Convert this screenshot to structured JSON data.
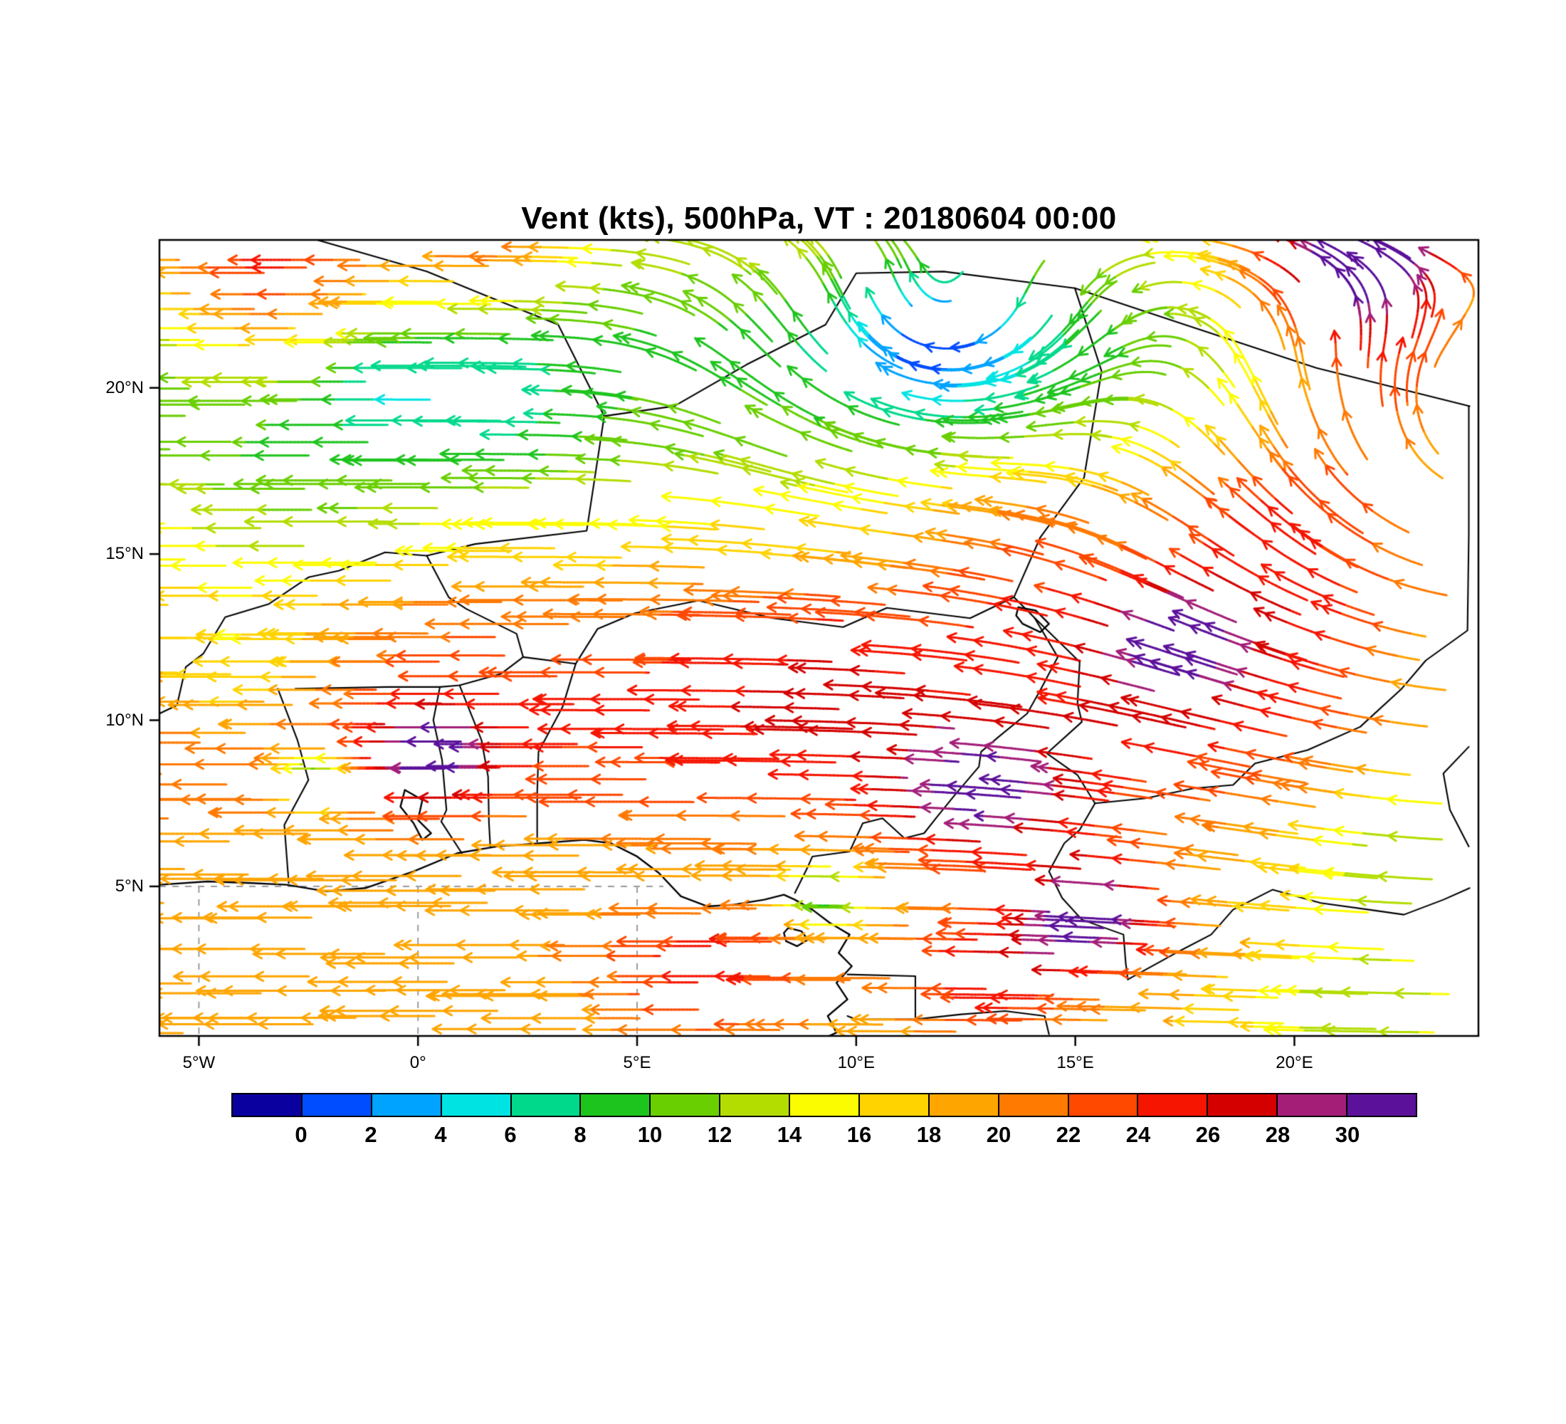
{
  "title": "Vent (kts), 500hPa, VT : 20180604  00:00",
  "chart_data": {
    "type": "vector_field_map",
    "variable": "Vent",
    "units": "kts",
    "pressure_level": "500hPa",
    "valid_time": "20180604 00:00",
    "title": "Vent (kts), 500hPa, VT : 20180604  00:00",
    "map_extent": {
      "lon_min": -5.9,
      "lon_max": 24.2,
      "lat_min": 0.5,
      "lat_max": 24.45
    },
    "x_ticks": [
      {
        "value": -5,
        "label": "5°W"
      },
      {
        "value": 0,
        "label": "0°"
      },
      {
        "value": 5,
        "label": "5°E"
      },
      {
        "value": 10,
        "label": "10°E"
      },
      {
        "value": 15,
        "label": "15°E"
      },
      {
        "value": 20,
        "label": "20°E"
      }
    ],
    "y_ticks": [
      {
        "value": 5,
        "label": "5°N"
      },
      {
        "value": 10,
        "label": "10°N"
      },
      {
        "value": 15,
        "label": "15°N"
      },
      {
        "value": 20,
        "label": "20°N"
      }
    ],
    "grid_lines": {
      "dashed_parallels": [
        5
      ],
      "dashed_meridians": [
        -5,
        0,
        5
      ]
    },
    "colorbar": {
      "tick_labels": [
        "0",
        "2",
        "4",
        "6",
        "8",
        "10",
        "12",
        "14",
        "16",
        "18",
        "20",
        "22",
        "24",
        "26",
        "28",
        "30"
      ],
      "colors": [
        "#0a00a0",
        "#004dff",
        "#00a3ff",
        "#00e3e3",
        "#00d98c",
        "#1ec41e",
        "#69cf00",
        "#b3dd00",
        "#fcfc00",
        "#ffd300",
        "#ffa500",
        "#ff7a00",
        "#ff4800",
        "#f51500",
        "#d40000",
        "#a41e78",
        "#5c119b"
      ]
    },
    "wind_model": {
      "note": "easterly flow colored by speed (kts); speed_by_lat pairs are [lat, kts]",
      "speed_by_lat": [
        [
          0.5,
          18
        ],
        [
          2,
          18.5
        ],
        [
          3,
          19.5
        ],
        [
          5,
          18
        ],
        [
          6.5,
          20
        ],
        [
          8,
          23
        ],
        [
          10,
          24.5
        ],
        [
          12,
          23
        ],
        [
          13.5,
          21
        ],
        [
          15,
          17
        ],
        [
          16.5,
          15
        ],
        [
          18,
          12
        ],
        [
          19.5,
          10.5
        ],
        [
          21,
          9.5
        ],
        [
          22.5,
          10.5
        ],
        [
          24.4,
          13.5
        ]
      ],
      "gyres": [
        {
          "lon": 11.8,
          "lat": 21.4,
          "radius": 4.0,
          "strength": 25,
          "rotation": "clockwise"
        },
        {
          "lon": 25.0,
          "lat": 15.5,
          "radius": 8.0,
          "strength": 28,
          "rotation": "clockwise"
        }
      ],
      "anomaly_format": "[lon, lat, sigma_deg, amp_kts]",
      "speed_anomalies": [
        [
          12.8,
          7.6,
          2.2,
          9
        ],
        [
          0.2,
          8.9,
          1.4,
          9
        ],
        [
          17.2,
          12.3,
          2.0,
          8
        ],
        [
          15.3,
          4.3,
          1.7,
          13
        ],
        [
          6.5,
          2.3,
          2.5,
          6
        ],
        [
          13.0,
          2.2,
          2.0,
          7
        ],
        [
          -3.5,
          23.5,
          3.0,
          12
        ],
        [
          1.5,
          24.2,
          2.0,
          7
        ],
        [
          21.5,
          23.8,
          2.8,
          20
        ],
        [
          19.5,
          16.5,
          3.5,
          9
        ],
        [
          22.5,
          20.0,
          2.5,
          8
        ],
        [
          13.5,
          15.5,
          2.5,
          5
        ],
        [
          9.0,
          11.5,
          3.0,
          3
        ],
        [
          11.8,
          21.4,
          2.4,
          -9
        ],
        [
          1.5,
          19.3,
          2.2,
          -4
        ],
        [
          -1.0,
          20.3,
          1.5,
          -4
        ],
        [
          -2.5,
          17.0,
          3.0,
          -3.5
        ],
        [
          -4.5,
          11.5,
          2.8,
          -7
        ],
        [
          23.0,
          7.0,
          3.0,
          -8
        ],
        [
          21.5,
          1.5,
          2.5,
          -6
        ],
        [
          23.5,
          11.5,
          2.0,
          -5
        ],
        [
          -2.4,
          8.2,
          0.9,
          -12
        ],
        [
          9.2,
          4.6,
          1.0,
          -10
        ]
      ]
    },
    "map_outlines": {
      "coastlines": [
        [
          [
            -5.9,
            5.05
          ],
          [
            -4.8,
            5.15
          ],
          [
            -3.8,
            5.1
          ],
          [
            -3.0,
            5.05
          ],
          [
            -2.1,
            4.85
          ],
          [
            -1.2,
            4.95
          ],
          [
            -0.1,
            5.45
          ],
          [
            0.9,
            6.0
          ],
          [
            1.8,
            6.2
          ],
          [
            2.8,
            6.3
          ],
          [
            3.8,
            6.4
          ],
          [
            4.4,
            6.3
          ],
          [
            5.0,
            5.9
          ],
          [
            5.5,
            5.4
          ],
          [
            6.0,
            4.7
          ],
          [
            6.6,
            4.4
          ],
          [
            7.2,
            4.45
          ],
          [
            7.9,
            4.6
          ],
          [
            8.35,
            4.75
          ],
          [
            8.6,
            4.6
          ],
          [
            9.0,
            4.3
          ],
          [
            9.4,
            3.9
          ],
          [
            9.85,
            3.55
          ],
          [
            9.6,
            3.0
          ],
          [
            9.9,
            2.6
          ],
          [
            9.55,
            2.1
          ],
          [
            9.8,
            1.6
          ],
          [
            9.35,
            1.1
          ],
          [
            9.55,
            0.6
          ],
          [
            9.3,
            0.45
          ]
        ],
        [
          [
            8.45,
            3.75
          ],
          [
            8.75,
            3.65
          ],
          [
            8.9,
            3.4
          ],
          [
            8.65,
            3.2
          ],
          [
            8.4,
            3.35
          ],
          [
            8.35,
            3.6
          ],
          [
            8.45,
            3.75
          ]
        ],
        [
          [
            -0.3,
            7.9
          ],
          [
            0.1,
            7.6
          ],
          [
            0.0,
            7.0
          ],
          [
            0.3,
            6.6
          ],
          [
            0.1,
            6.4
          ],
          [
            -0.1,
            6.9
          ],
          [
            -0.4,
            7.4
          ],
          [
            -0.3,
            7.9
          ]
        ],
        [
          [
            13.7,
            13.4
          ],
          [
            14.1,
            13.3
          ],
          [
            14.4,
            12.9
          ],
          [
            14.2,
            12.65
          ],
          [
            13.8,
            12.9
          ],
          [
            13.65,
            13.15
          ],
          [
            13.7,
            13.4
          ]
        ]
      ],
      "borders": [
        [
          [
            -2.3,
            24.45
          ],
          [
            0.2,
            23.5
          ],
          [
            1.5,
            22.8
          ],
          [
            3.2,
            21.9
          ],
          [
            4.25,
            19.15
          ],
          [
            5.85,
            19.45
          ],
          [
            7.5,
            20.7
          ],
          [
            9.3,
            21.9
          ],
          [
            10.0,
            23.45
          ],
          [
            12.0,
            23.5
          ],
          [
            14.99,
            23.0
          ],
          [
            17.5,
            21.9
          ],
          [
            20.5,
            20.6
          ],
          [
            24.0,
            19.45
          ]
        ],
        [
          [
            14.99,
            23.0
          ],
          [
            15.6,
            20.5
          ],
          [
            15.2,
            17.3
          ],
          [
            14.2,
            15.5
          ],
          [
            13.6,
            13.7
          ]
        ],
        [
          [
            4.25,
            19.15
          ],
          [
            3.85,
            15.7
          ],
          [
            1.3,
            15.3
          ],
          [
            0.2,
            14.95
          ],
          [
            -0.75,
            15.05
          ],
          [
            -1.8,
            14.5
          ],
          [
            -2.5,
            14.3
          ]
        ],
        [
          [
            0.2,
            14.95
          ],
          [
            0.7,
            13.7
          ],
          [
            1.1,
            13.35
          ],
          [
            2.25,
            12.6
          ],
          [
            2.4,
            11.9
          ]
        ],
        [
          [
            -2.8,
            10.95
          ],
          [
            -0.7,
            11.0
          ],
          [
            0.5,
            11.0
          ],
          [
            0.95,
            11.05
          ],
          [
            1.9,
            11.4
          ],
          [
            2.4,
            11.9
          ]
        ],
        [
          [
            -2.5,
            14.3
          ],
          [
            -3.4,
            13.5
          ],
          [
            -4.4,
            13.1
          ],
          [
            -4.9,
            12.0
          ],
          [
            -5.3,
            11.6
          ],
          [
            -5.5,
            10.45
          ],
          [
            -5.9,
            10.2
          ]
        ],
        [
          [
            -3.2,
            10.95
          ],
          [
            -2.75,
            9.4
          ],
          [
            -2.5,
            8.2
          ],
          [
            -3.05,
            6.85
          ],
          [
            -2.95,
            5.1
          ]
        ],
        [
          [
            0.5,
            11.0
          ],
          [
            0.35,
            10.0
          ],
          [
            0.55,
            8.8
          ],
          [
            0.65,
            7.3
          ],
          [
            0.53,
            6.95
          ],
          [
            1.0,
            6.0
          ]
        ],
        [
          [
            0.95,
            11.05
          ],
          [
            1.45,
            9.4
          ],
          [
            1.6,
            8.3
          ],
          [
            1.62,
            6.9
          ],
          [
            1.65,
            6.2
          ]
        ],
        [
          [
            3.6,
            11.7
          ],
          [
            3.3,
            10.4
          ],
          [
            2.75,
            9.05
          ],
          [
            2.72,
            7.8
          ],
          [
            2.72,
            6.35
          ]
        ],
        [
          [
            2.4,
            11.9
          ],
          [
            3.6,
            11.7
          ],
          [
            4.1,
            12.75
          ],
          [
            4.95,
            13.22
          ],
          [
            6.4,
            13.6
          ],
          [
            8.1,
            13.07
          ],
          [
            9.7,
            12.8
          ],
          [
            10.7,
            13.38
          ],
          [
            12.6,
            13.07
          ],
          [
            13.6,
            13.7
          ]
        ],
        [
          [
            13.6,
            13.7
          ],
          [
            14.07,
            13.08
          ],
          [
            14.6,
            11.9
          ],
          [
            14.2,
            10.9
          ],
          [
            13.9,
            10.2
          ],
          [
            13.25,
            9.5
          ],
          [
            12.85,
            9.05
          ],
          [
            12.8,
            8.6
          ],
          [
            12.25,
            7.75
          ],
          [
            11.85,
            7.1
          ],
          [
            11.55,
            6.6
          ],
          [
            11.1,
            6.45
          ],
          [
            10.6,
            7.05
          ],
          [
            10.15,
            6.9
          ],
          [
            9.85,
            6.05
          ],
          [
            9.0,
            5.9
          ],
          [
            8.9,
            5.6
          ],
          [
            8.6,
            4.8
          ]
        ],
        [
          [
            14.07,
            13.08
          ],
          [
            15.1,
            11.75
          ],
          [
            15.05,
            10.5
          ],
          [
            15.15,
            9.95
          ],
          [
            14.35,
            9.0
          ],
          [
            15.05,
            8.35
          ],
          [
            15.45,
            7.5
          ],
          [
            16.6,
            7.65
          ],
          [
            17.7,
            7.95
          ],
          [
            18.6,
            8.05
          ],
          [
            19.1,
            8.7
          ],
          [
            20.3,
            9.1
          ],
          [
            21.5,
            9.8
          ],
          [
            22.45,
            10.95
          ],
          [
            23.0,
            11.8
          ],
          [
            23.95,
            12.7
          ],
          [
            23.98,
            15.6
          ],
          [
            23.98,
            19.45
          ]
        ],
        [
          [
            15.45,
            7.5
          ],
          [
            15.1,
            6.7
          ],
          [
            14.75,
            6.3
          ],
          [
            14.4,
            5.45
          ],
          [
            14.7,
            4.65
          ],
          [
            15.15,
            4.0
          ],
          [
            16.1,
            3.55
          ],
          [
            16.15,
            2.7
          ],
          [
            16.2,
            2.2
          ]
        ],
        [
          [
            9.8,
            2.35
          ],
          [
            11.35,
            2.3
          ],
          [
            11.35,
            1.0
          ],
          [
            12.4,
            1.15
          ],
          [
            13.4,
            1.25
          ],
          [
            14.3,
            1.1
          ],
          [
            14.4,
            0.55
          ]
        ],
        [
          [
            11.35,
            1.0
          ],
          [
            10.0,
            1.0
          ],
          [
            9.8,
            1.1
          ]
        ],
        [
          [
            16.2,
            2.2
          ],
          [
            17.3,
            3.0
          ],
          [
            18.1,
            3.55
          ],
          [
            18.6,
            4.3
          ],
          [
            19.5,
            4.9
          ],
          [
            20.6,
            4.5
          ],
          [
            21.7,
            4.3
          ],
          [
            22.5,
            4.15
          ],
          [
            23.4,
            4.6
          ],
          [
            24.0,
            4.95
          ]
        ],
        [
          [
            23.98,
            9.2
          ],
          [
            23.4,
            8.4
          ],
          [
            23.55,
            7.3
          ],
          [
            23.98,
            6.2
          ]
        ]
      ]
    }
  }
}
